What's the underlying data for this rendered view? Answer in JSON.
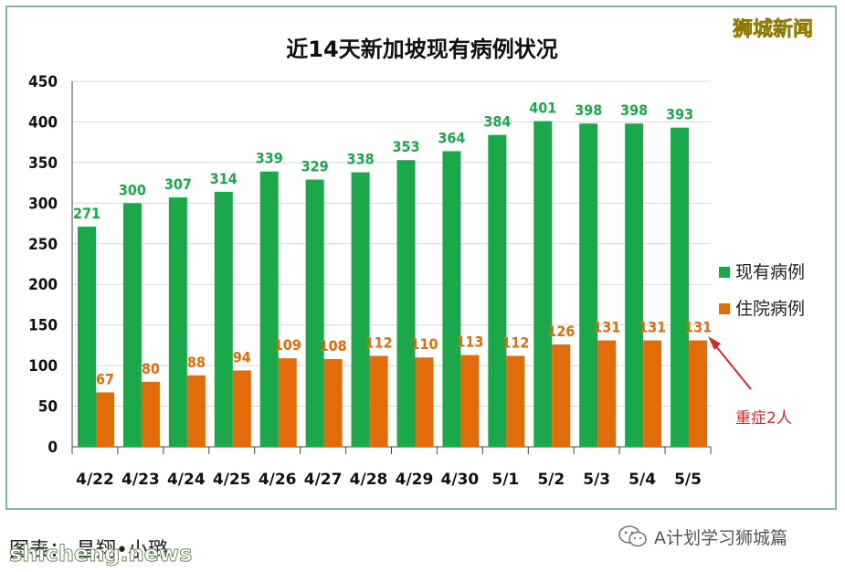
{
  "watermark_top": "狮城新闻",
  "credit": "图表：  昌翔•小璐",
  "site_watermark": "shicheng.news",
  "wechat_account": "A计划学习狮城篇",
  "callout": "重症2人",
  "colors": {
    "current": "#1aa84b",
    "hospital": "#e26b0a",
    "callout": "#d62a2a",
    "frame": "#7fb9a8"
  },
  "chart_data": {
    "type": "bar",
    "title": "近14天新加坡现有病例状况",
    "categories": [
      "4/22",
      "4/23",
      "4/24",
      "4/25",
      "4/26",
      "4/27",
      "4/28",
      "4/29",
      "4/30",
      "5/1",
      "5/2",
      "5/3",
      "5/4",
      "5/5"
    ],
    "series": [
      {
        "name": "现有病例",
        "values": [
          271,
          300,
          307,
          314,
          339,
          329,
          338,
          353,
          364,
          384,
          401,
          398,
          398,
          393
        ]
      },
      {
        "name": "住院病例",
        "values": [
          67,
          80,
          88,
          94,
          109,
          108,
          112,
          110,
          113,
          112,
          126,
          131,
          131,
          131
        ]
      }
    ],
    "ylim": [
      0,
      450
    ],
    "yticks": [
      0,
      50,
      100,
      150,
      200,
      250,
      300,
      350,
      400,
      450
    ],
    "grid": true,
    "legend_position": "right"
  }
}
